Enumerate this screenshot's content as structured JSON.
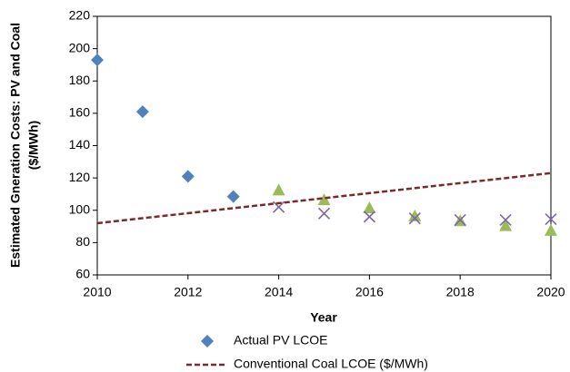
{
  "chart_data": {
    "type": "scatter",
    "xlabel": "Year",
    "ylabel": [
      "Estimated Gneration Costs: PV and Coal",
      "($/MWh)"
    ],
    "xlim": [
      2010,
      2020
    ],
    "xticks": [
      2010,
      2012,
      2014,
      2016,
      2018,
      2020
    ],
    "ylim": [
      60,
      220
    ],
    "yticks": [
      60,
      80,
      100,
      120,
      140,
      160,
      180,
      200,
      220
    ],
    "series": [
      {
        "name": "Actual PV LCOE",
        "marker": "diamond",
        "color": "#4f81bd",
        "x": [
          2010,
          2011,
          2012,
          2013
        ],
        "values": [
          193,
          161,
          121,
          108.5
        ]
      },
      {
        "marker": "triangle",
        "color": "#9bbb59",
        "x": [
          2014,
          2015,
          2016,
          2017,
          2018,
          2019,
          2020
        ],
        "values": [
          112,
          106,
          101,
          96,
          93,
          90,
          87
        ]
      },
      {
        "marker": "x",
        "color": "#8064a2",
        "x": [
          2014,
          2015,
          2016,
          2017,
          2018,
          2019,
          2020
        ],
        "values": [
          102,
          98,
          96,
          95,
          94,
          94,
          94.5
        ]
      },
      {
        "name": "Conventional Coal LCOE ($/MWh)",
        "marker": "dashed-line",
        "color": "#7b2a2a",
        "x": [
          2010,
          2020
        ],
        "values": [
          92,
          123
        ]
      }
    ]
  }
}
